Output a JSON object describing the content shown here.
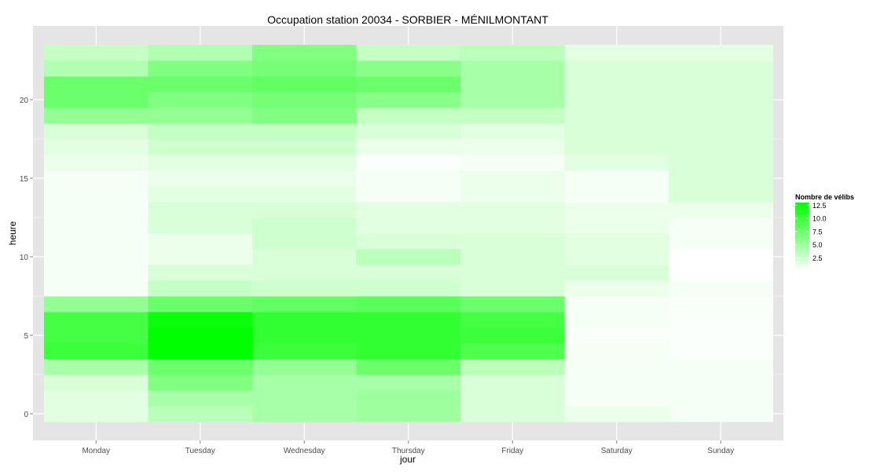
{
  "chart_data": {
    "type": "heatmap",
    "title": "Occupation station 20034 - SORBIER - MÉNILMONTANT",
    "xlabel": "jour",
    "ylabel": "heure",
    "categories": [
      "Monday",
      "Tuesday",
      "Wednesday",
      "Thursday",
      "Friday",
      "Saturday",
      "Sunday"
    ],
    "hours": [
      0,
      1,
      2,
      3,
      4,
      5,
      6,
      7,
      8,
      9,
      10,
      11,
      12,
      13,
      14,
      15,
      16,
      17,
      18,
      19,
      20,
      21,
      22,
      23
    ],
    "y_ticks": [
      0,
      5,
      10,
      15,
      20
    ],
    "ylim": [
      -0.5,
      23.5
    ],
    "values": [
      [
        1.5,
        3.5,
        4.5,
        5.0,
        2.0,
        1.0,
        0.5
      ],
      [
        1.5,
        4.5,
        4.5,
        5.0,
        2.0,
        0.5,
        0.5
      ],
      [
        2.0,
        6.5,
        4.5,
        4.5,
        2.0,
        0.5,
        0.5
      ],
      [
        4.5,
        7.5,
        5.5,
        7.5,
        3.5,
        0.5,
        0.5
      ],
      [
        10.0,
        13.0,
        10.0,
        10.5,
        9.0,
        0.5,
        0.2
      ],
      [
        9.5,
        13.0,
        10.5,
        10.5,
        10.0,
        0.3,
        0.2
      ],
      [
        9.5,
        12.5,
        10.5,
        10.5,
        9.5,
        0.5,
        0.2
      ],
      [
        5.5,
        7.5,
        8.0,
        8.5,
        7.5,
        0.5,
        0.3
      ],
      [
        0.5,
        3.0,
        2.5,
        2.5,
        2.0,
        1.0,
        0.5
      ],
      [
        0.5,
        2.0,
        2.0,
        2.0,
        2.0,
        2.0,
        0.0
      ],
      [
        0.5,
        1.0,
        2.0,
        3.5,
        2.0,
        1.5,
        0.0
      ],
      [
        0.5,
        1.0,
        2.5,
        2.0,
        2.0,
        1.5,
        0.5
      ],
      [
        0.5,
        2.0,
        2.5,
        1.5,
        1.5,
        1.0,
        0.5
      ],
      [
        0.5,
        2.0,
        2.0,
        1.5,
        1.5,
        1.0,
        1.0
      ],
      [
        0.5,
        1.5,
        1.5,
        0.5,
        1.0,
        0.5,
        2.0
      ],
      [
        0.5,
        1.0,
        1.0,
        0.5,
        1.0,
        0.5,
        2.0
      ],
      [
        1.0,
        1.5,
        1.5,
        0.2,
        0.5,
        1.5,
        2.0
      ],
      [
        1.5,
        2.5,
        2.5,
        1.0,
        1.0,
        2.0,
        2.0
      ],
      [
        2.0,
        3.0,
        3.0,
        2.0,
        1.5,
        2.0,
        2.0
      ],
      [
        5.5,
        5.5,
        6.5,
        3.0,
        3.0,
        2.0,
        2.0
      ],
      [
        7.5,
        6.5,
        7.0,
        6.0,
        4.5,
        2.0,
        2.0
      ],
      [
        7.5,
        7.5,
        8.0,
        7.5,
        4.5,
        2.0,
        2.0
      ],
      [
        4.0,
        6.5,
        7.0,
        6.0,
        4.5,
        2.0,
        2.0
      ],
      [
        3.0,
        4.0,
        6.5,
        3.0,
        3.5,
        1.5,
        1.5
      ]
    ],
    "legend": {
      "title": "Nombre de vélibs",
      "labels": [
        "12.5",
        "10.0",
        "7.5",
        "5.0",
        "2.5"
      ],
      "position": "right"
    },
    "color_scale": {
      "low": "#ffffff",
      "high": "#00ff00",
      "min": 0,
      "max": 13.0
    },
    "grid": true,
    "panel_background": "#e5e5e5",
    "grid_color": "#ffffff"
  }
}
